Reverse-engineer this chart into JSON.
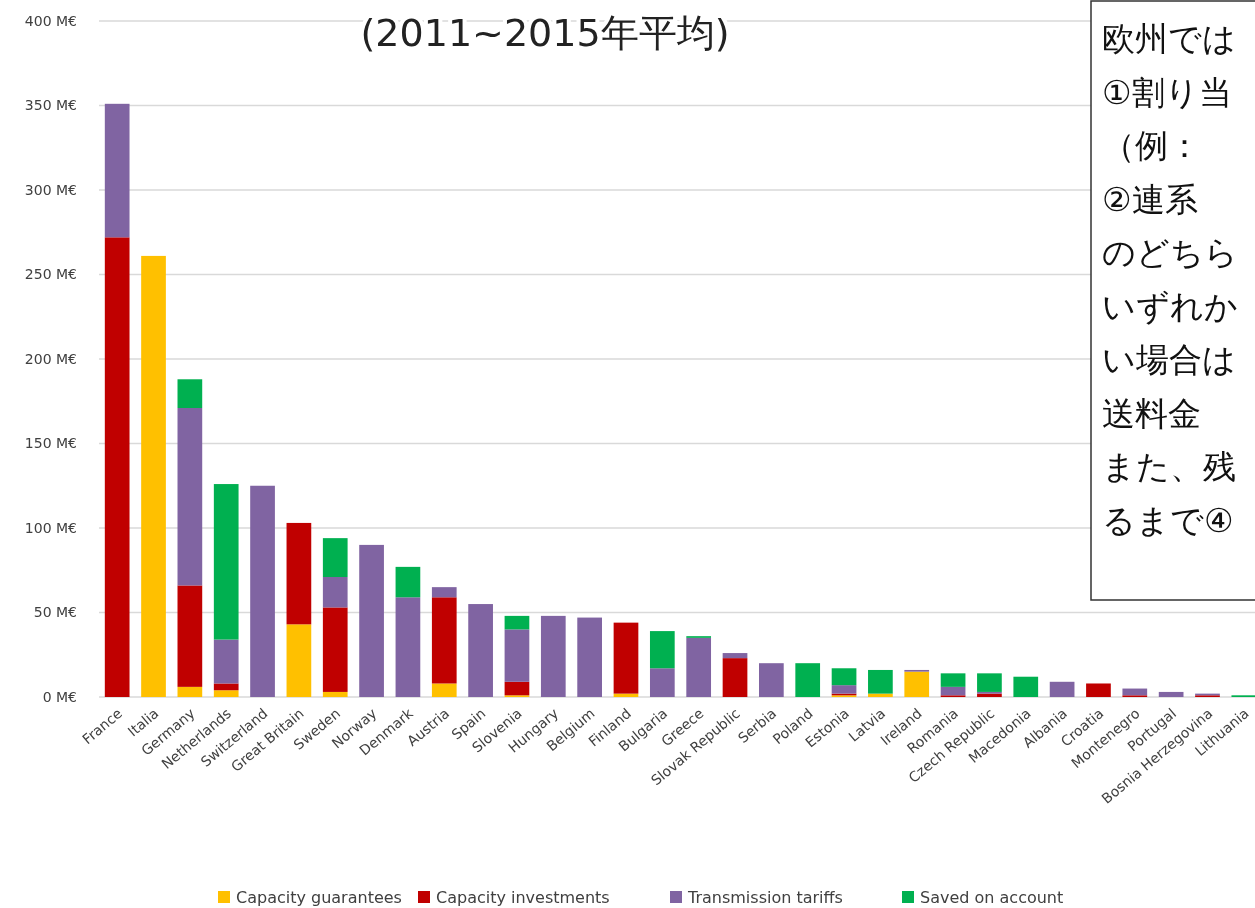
{
  "chart_data": {
    "type": "bar",
    "title": "(2011~2015年平均)",
    "stacked": true,
    "categories": [
      "France",
      "Italia",
      "Germany",
      "Netherlands",
      "Switzerland",
      "Great Britain",
      "Sweden",
      "Norway",
      "Denmark",
      "Austria",
      "Spain",
      "Slovenia",
      "Hungary",
      "Belgium",
      "Finland",
      "Bulgaria",
      "Greece",
      "Slovak Republic",
      "Serbia",
      "Poland",
      "Estonia",
      "Latvia",
      "Ireland",
      "Romania",
      "Czech Republic",
      "Macedonia",
      "Albania",
      "Croatia",
      "Montenegro",
      "Portugal",
      "Bosnia Herzegovina",
      "Lithuania"
    ],
    "series": [
      {
        "name": "Capacity guarantees",
        "color": "#ffc000",
        "values": [
          0,
          261,
          6,
          4,
          0,
          43,
          3,
          0,
          0,
          8,
          0,
          1,
          0,
          0,
          2,
          0,
          0,
          0,
          0,
          0,
          1,
          2,
          15,
          0,
          0,
          0,
          0,
          0,
          0,
          0,
          0,
          0
        ]
      },
      {
        "name": "Capacity investments",
        "color": "#c00000",
        "values": [
          272,
          0,
          60,
          4,
          0,
          60,
          50,
          0,
          0,
          51,
          0,
          8,
          0,
          0,
          42,
          0,
          0,
          23,
          0,
          0,
          1,
          0,
          0,
          1,
          2,
          0,
          0,
          8,
          1,
          0,
          1,
          0
        ]
      },
      {
        "name": "Transmission tariffs",
        "color": "#8064a2",
        "values": [
          79,
          0,
          105,
          26,
          125,
          0,
          18,
          90,
          59,
          6,
          55,
          31,
          48,
          47,
          0,
          17,
          35,
          3,
          20,
          0,
          5,
          0,
          1,
          5,
          1,
          0,
          9,
          0,
          4,
          3,
          1,
          0
        ]
      },
      {
        "name": "Saved on account",
        "color": "#00b050",
        "values": [
          0,
          0,
          17,
          92,
          0,
          0,
          23,
          0,
          18,
          0,
          0,
          8,
          0,
          0,
          0,
          22,
          1,
          0,
          0,
          20,
          10,
          14,
          0,
          8,
          11,
          12,
          0,
          0,
          0,
          0,
          0,
          1
        ]
      }
    ],
    "ylim": [
      0,
      400
    ],
    "yticks": [
      {
        "value": 0,
        "label": "0 M€"
      },
      {
        "value": 50,
        "label": "50 M€"
      },
      {
        "value": 100,
        "label": "100 M€"
      },
      {
        "value": 150,
        "label": "150 M€"
      },
      {
        "value": 200,
        "label": "200 M€"
      },
      {
        "value": 250,
        "label": "250 M€"
      },
      {
        "value": 300,
        "label": "300 M€"
      },
      {
        "value": 350,
        "label": "350 M€"
      },
      {
        "value": 400,
        "label": "400 M€"
      }
    ],
    "grid": "y",
    "legend": "bottom",
    "annotations": [
      "欧州では",
      "①割り当",
      "（例：",
      "②連系",
      "のどちら",
      "いずれか",
      "い場合は",
      "送料金",
      "また、残",
      "るまで④"
    ]
  }
}
